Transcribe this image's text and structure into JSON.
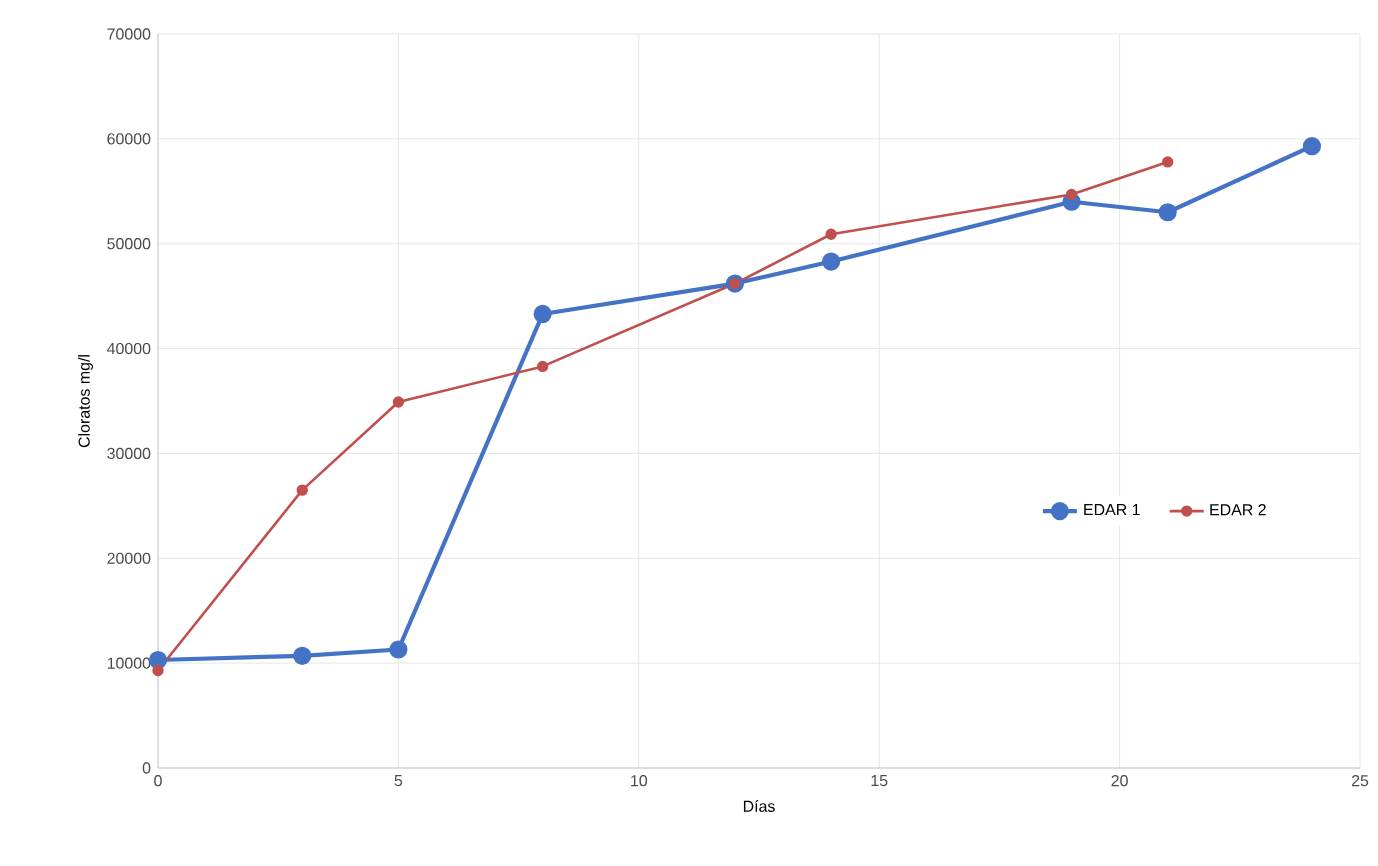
{
  "chart_data": {
    "type": "line",
    "xlabel": "Días",
    "ylabel": "Cloratos mg/l",
    "xlim": [
      0,
      25
    ],
    "xticks": [
      0,
      5,
      10,
      15,
      20,
      25
    ],
    "ylim": [
      0,
      70000
    ],
    "yticks": [
      0,
      10000,
      20000,
      30000,
      40000,
      50000,
      60000,
      70000
    ],
    "grid": true,
    "legend": "right",
    "marker": "circle",
    "line_style": "solid",
    "series": [
      {
        "name": "EDAR 1",
        "color": "#4472c4",
        "x": [
          0,
          3,
          5,
          8,
          12,
          14,
          19,
          21,
          24
        ],
        "values": [
          10300,
          10700,
          11300,
          43300,
          46200,
          48300,
          54000,
          53000,
          59300
        ]
      },
      {
        "name": "EDAR 2",
        "color": "#c0504d",
        "x": [
          0,
          3,
          5,
          8,
          12,
          14,
          19,
          21
        ],
        "values": [
          9300,
          26500,
          34900,
          38300,
          46200,
          50900,
          54700,
          57800
        ]
      }
    ]
  }
}
